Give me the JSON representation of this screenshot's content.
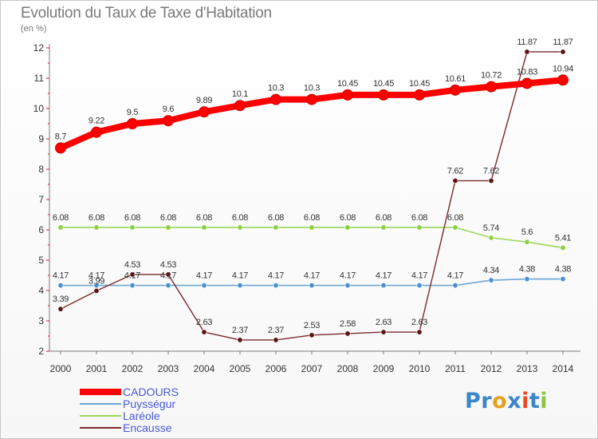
{
  "title": "Evolution du Taux de Taxe d'Habitation",
  "unit_label": "(en %)",
  "brand": {
    "text": "Proxiti",
    "letters": [
      {
        "ch": "P",
        "color": "#3a86c8"
      },
      {
        "ch": "r",
        "color": "#3a86c8"
      },
      {
        "ch": "o",
        "color": "#e8a020"
      },
      {
        "ch": "x",
        "color": "#3a86c8"
      },
      {
        "ch": "i",
        "color": "#e84a20"
      },
      {
        "ch": "t",
        "color": "#3a86c8"
      },
      {
        "ch": "i",
        "color": "#8cc63f"
      }
    ]
  },
  "chart_data": {
    "type": "line",
    "title": "Evolution du Taux de Taxe d'Habitation",
    "ylabel": "(en %)",
    "xlabel": "",
    "ylim": [
      2,
      12
    ],
    "yticks": [
      2,
      3,
      4,
      5,
      6,
      7,
      8,
      9,
      10,
      11,
      12
    ],
    "grid": false,
    "legend_position": "bottom-left",
    "x": [
      "2000",
      "2001",
      "2002",
      "2003",
      "2004",
      "2005",
      "2006",
      "2007",
      "2008",
      "2009",
      "2010",
      "2011",
      "2012",
      "2013",
      "2014"
    ],
    "series": [
      {
        "name": "CADOURS",
        "color": "#ff0000",
        "marker": "#ff0000",
        "values": [
          8.7,
          9.22,
          9.5,
          9.6,
          9.89,
          10.1,
          10.3,
          10.3,
          10.45,
          10.45,
          10.45,
          10.61,
          10.72,
          10.83,
          10.94
        ],
        "labels": [
          "8.7",
          "9.22",
          "9.5",
          "9.6",
          "9.89",
          "10.1",
          "10.3",
          "10.3",
          "10.45",
          "10.45",
          "10.45",
          "10.61",
          "10.72",
          "10.83",
          "10.94"
        ]
      },
      {
        "name": "Puysségur",
        "color": "#6aa6d8",
        "marker": "#4a90d0",
        "values": [
          4.17,
          4.17,
          4.17,
          4.17,
          4.17,
          4.17,
          4.17,
          4.17,
          4.17,
          4.17,
          4.17,
          4.17,
          4.34,
          4.38,
          4.38
        ],
        "labels": [
          "4.17",
          "4.17",
          "4.17",
          "4.17",
          "4.17",
          "4.17",
          "4.17",
          "4.17",
          "4.17",
          "4.17",
          "4.17",
          "4.17",
          "4.34",
          "4.38",
          "4.38"
        ]
      },
      {
        "name": "Laréole",
        "color": "#9ad85a",
        "marker": "#8cd040",
        "values": [
          6.08,
          6.08,
          6.08,
          6.08,
          6.08,
          6.08,
          6.08,
          6.08,
          6.08,
          6.08,
          6.08,
          6.08,
          5.74,
          5.6,
          5.41
        ],
        "labels": [
          "6.08",
          "6.08",
          "6.08",
          "6.08",
          "6.08",
          "6.08",
          "6.08",
          "6.08",
          "6.08",
          "6.08",
          "6.08",
          "6.08",
          "5.74",
          "5.6",
          "5.41"
        ]
      },
      {
        "name": "Encausse",
        "color": "#7a2a2a",
        "marker": "#5a1414",
        "values": [
          3.39,
          3.99,
          4.53,
          4.53,
          2.63,
          2.37,
          2.37,
          2.53,
          2.58,
          2.63,
          2.63,
          7.62,
          7.62,
          11.87,
          11.87
        ],
        "labels": [
          "3.39",
          "3.99",
          "4.53",
          "4.53",
          "2.63",
          "2.37",
          "2.37",
          "2.53",
          "2.58",
          "2.63",
          "2.63",
          "7.62",
          "7.62",
          "11.87",
          "11.87"
        ]
      }
    ]
  },
  "legend": [
    {
      "label": "CADOURS",
      "color": "#ff0000",
      "text_color": "#4a5ad8"
    },
    {
      "label": "Puysségur",
      "color": "#6aa6d8",
      "text_color": "#4a5ad8"
    },
    {
      "label": "Laréole",
      "color": "#9ad85a",
      "text_color": "#4a5ad8"
    },
    {
      "label": "Encausse",
      "color": "#7a2a2a",
      "text_color": "#4a5ad8"
    }
  ]
}
